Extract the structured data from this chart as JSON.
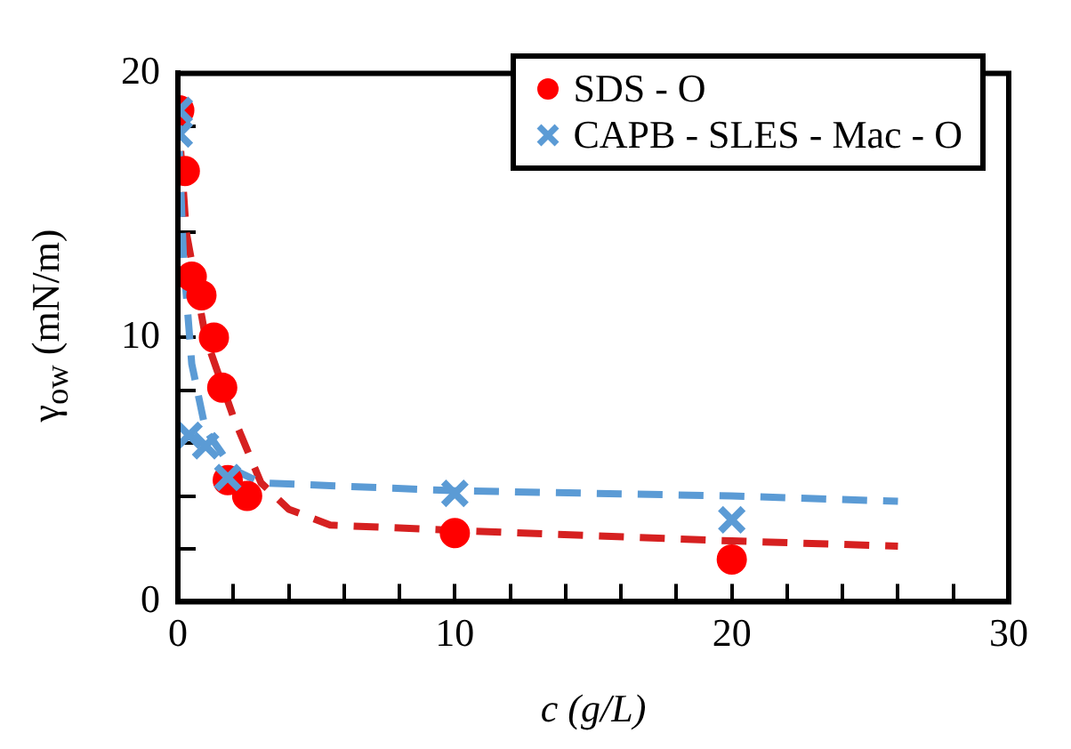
{
  "chart_data": {
    "type": "scatter",
    "xlabel": "c (g/L)",
    "ylabel": "γ$_{ow}$ (mN/m)",
    "xlim": [
      0,
      30
    ],
    "xticks": [
      0,
      {
        "value": 2,
        "label": null
      },
      {
        "value": 4,
        "label": null
      },
      {
        "value": 6,
        "label": null
      },
      {
        "value": 8,
        "label": null
      },
      10,
      {
        "value": 12,
        "label": null
      },
      {
        "value": 14,
        "label": null
      },
      {
        "value": 16,
        "label": null
      },
      {
        "value": 18,
        "label": null
      },
      20,
      {
        "value": 22,
        "label": null
      },
      {
        "value": 24,
        "label": null
      },
      {
        "value": 26,
        "label": null
      },
      {
        "value": 28,
        "label": null
      },
      30
    ],
    "ylim": [
      0,
      20
    ],
    "yticks": [
      0,
      {
        "value": 2,
        "label": null
      },
      {
        "value": 4,
        "label": null
      },
      {
        "value": 6,
        "label": null
      },
      {
        "value": 8,
        "label": null
      },
      10,
      {
        "value": 12,
        "label": null
      },
      {
        "value": 14,
        "label": null
      },
      {
        "value": 16,
        "label": null
      },
      {
        "value": 18,
        "label": null
      },
      20
    ],
    "legend": "top right",
    "line_style": "dashed",
    "series": [
      {
        "type": "line",
        "marker": "none",
        "color": "#d62020",
        "x": [
          0,
          0.3,
          1,
          2,
          3,
          4,
          5.5,
          10,
          20,
          26
        ],
        "values": [
          18.6,
          14,
          10,
          7,
          4.5,
          3.5,
          2.9,
          2.7,
          2.3,
          2.1
        ]
      },
      {
        "type": "line",
        "marker": "none",
        "color": "#5b9bd5",
        "x": [
          0,
          0.2,
          0.5,
          1,
          2,
          3,
          10,
          20,
          26
        ],
        "values": [
          18.6,
          13,
          9,
          6.5,
          5,
          4.5,
          4.2,
          4.0,
          3.8
        ]
      },
      {
        "name": "SDS - O",
        "marker": "circle",
        "color": "#ff0000",
        "x": [
          0.05,
          0.25,
          0.5,
          0.85,
          1.3,
          1.6,
          1.8,
          2.5,
          10,
          20
        ],
        "values": [
          18.6,
          16.3,
          12.3,
          11.6,
          10,
          8.1,
          4.6,
          4.0,
          2.6,
          1.6
        ]
      },
      {
        "name": "CAPB - SLES - Mac - O",
        "marker": "cross",
        "color": "#5b9bd5",
        "x": [
          0.05,
          0.05,
          0.4,
          1,
          1.8,
          10,
          20
        ],
        "values": [
          18.6,
          17.7,
          6.3,
          5.9,
          4.7,
          4.1,
          3.1
        ]
      }
    ]
  }
}
